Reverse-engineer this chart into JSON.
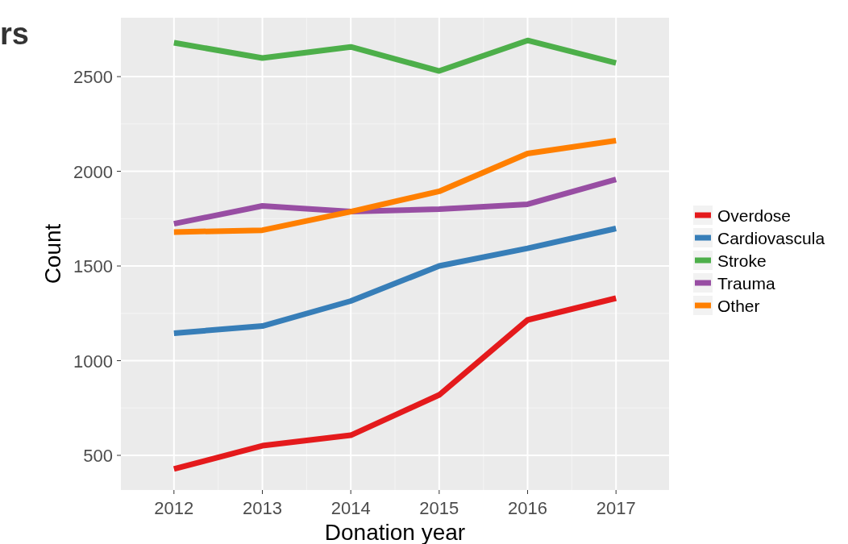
{
  "chart_data": {
    "type": "line",
    "title": "rs",
    "xlabel": "Donation year",
    "ylabel": "Count",
    "x": [
      2012,
      2013,
      2014,
      2015,
      2016,
      2017
    ],
    "xlim": [
      2011.4,
      2017.6
    ],
    "xticks": [
      2012,
      2013,
      2014,
      2015,
      2016,
      2017
    ],
    "ylim": [
      317,
      2811
    ],
    "yticks": [
      500,
      1000,
      1500,
      2000,
      2500
    ],
    "grid": true,
    "legend": "right",
    "line_style": "solid",
    "marker": "none",
    "series": [
      {
        "name": "Overdose",
        "color": "#e41a1c",
        "values": [
          428,
          551,
          606,
          819,
          1215,
          1330
        ]
      },
      {
        "name": "Cardiovascula",
        "color": "#377eb8",
        "values": [
          1145,
          1183,
          1315,
          1500,
          1593,
          1698
        ]
      },
      {
        "name": "Stroke",
        "color": "#4daf4a",
        "values": [
          2679,
          2598,
          2657,
          2530,
          2691,
          2572
        ]
      },
      {
        "name": "Trauma",
        "color": "#984ea3",
        "values": [
          1723,
          1817,
          1787,
          1800,
          1826,
          1957
        ]
      },
      {
        "name": "Other",
        "color": "#ff7f00",
        "values": [
          1679,
          1689,
          1787,
          1894,
          2094,
          2162
        ]
      }
    ]
  }
}
